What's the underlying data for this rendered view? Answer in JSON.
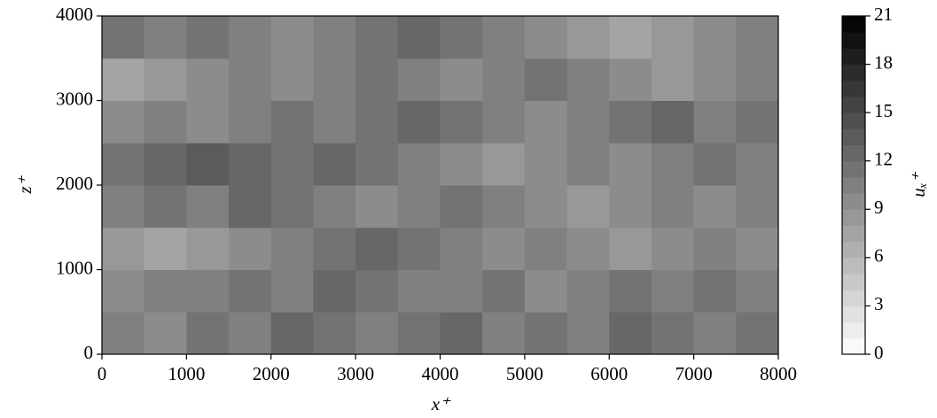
{
  "chart_data": {
    "type": "heatmap",
    "x_label": "x⁺",
    "y_label": "z⁺",
    "x": [
      250,
      750,
      1250,
      1750,
      2250,
      2750,
      3250,
      3750,
      4250,
      4750,
      5250,
      5750,
      6250,
      6750,
      7250,
      7750
    ],
    "z": [
      250,
      750,
      1250,
      1750,
      2250,
      2750,
      3250,
      3750
    ],
    "values": [
      [
        10,
        9,
        11,
        10,
        12,
        11,
        10,
        11,
        12,
        10,
        11,
        10,
        12,
        11,
        10,
        11
      ],
      [
        9,
        10,
        10,
        11,
        10,
        12,
        11,
        10,
        10,
        11,
        9,
        10,
        11,
        10,
        11,
        10
      ],
      [
        8,
        7,
        8,
        9,
        10,
        11,
        12,
        11,
        10,
        9,
        10,
        9,
        8,
        9,
        10,
        9
      ],
      [
        10,
        11,
        10,
        12,
        11,
        10,
        9,
        10,
        11,
        10,
        9,
        8,
        9,
        10,
        9,
        10
      ],
      [
        11,
        12,
        13,
        12,
        11,
        12,
        11,
        10,
        9,
        8,
        9,
        10,
        9,
        10,
        11,
        10
      ],
      [
        9,
        10,
        9,
        10,
        11,
        10,
        11,
        12,
        11,
        10,
        9,
        10,
        11,
        12,
        10,
        11
      ],
      [
        7,
        8,
        9,
        10,
        9,
        10,
        11,
        10,
        9,
        10,
        11,
        10,
        9,
        8,
        9,
        10
      ],
      [
        11,
        10,
        11,
        10,
        9,
        10,
        11,
        12,
        11,
        10,
        9,
        8,
        7,
        8,
        9,
        10
      ]
    ],
    "xlim": [
      0,
      8000
    ],
    "xticks": [
      0,
      1000,
      2000,
      3000,
      4000,
      5000,
      6000,
      7000,
      8000
    ],
    "ylim": [
      0,
      4000
    ],
    "yticks": [
      0,
      1000,
      2000,
      3000,
      4000
    ],
    "colorbar": {
      "label": "uₓ⁺",
      "lim": [
        0,
        21
      ],
      "ticks": [
        0,
        3,
        6,
        9,
        12,
        15,
        18,
        21
      ],
      "levels": 21,
      "cmap": [
        "#ffffff",
        "#000000"
      ]
    }
  }
}
